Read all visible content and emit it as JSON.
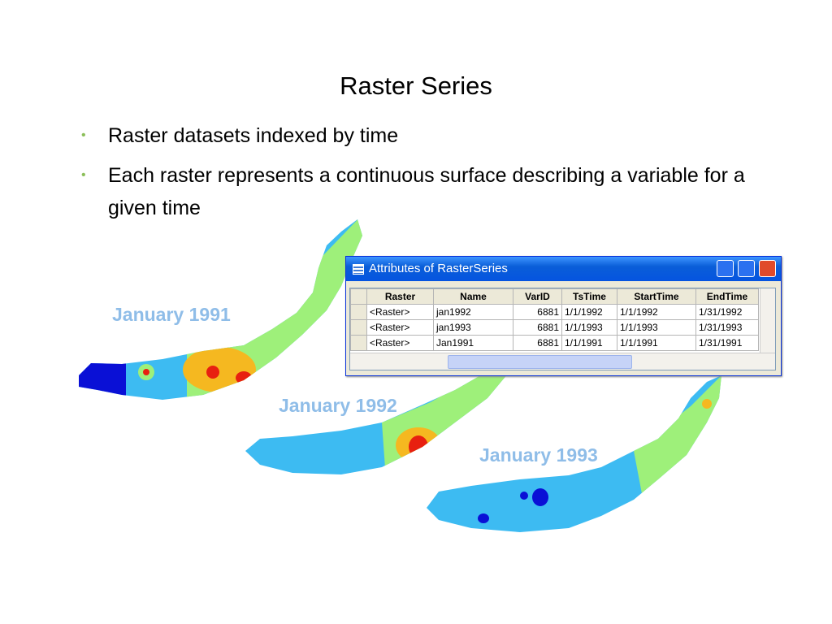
{
  "title": "Raster Series",
  "bullets": [
    "Raster datasets indexed by time",
    "Each raster represents a continuous surface describing a variable for a given time"
  ],
  "maps": [
    {
      "label": "January 1991"
    },
    {
      "label": "January 1992"
    },
    {
      "label": "January 1993"
    }
  ],
  "window": {
    "title": "Attributes of RasterSeries",
    "table": {
      "columns": [
        "Raster",
        "Name",
        "VarID",
        "TsTime",
        "StartTime",
        "EndTime"
      ],
      "rows": [
        [
          "<Raster>",
          "jan1992",
          6881,
          "1/1/1992",
          "1/1/1992",
          "1/31/1992"
        ],
        [
          "<Raster>",
          "jan1993",
          6881,
          "1/1/1993",
          "1/1/1993",
          "1/31/1993"
        ],
        [
          "<Raster>",
          "Jan1991",
          6881,
          "1/1/1991",
          "1/1/1991",
          "1/31/1991"
        ]
      ]
    }
  }
}
